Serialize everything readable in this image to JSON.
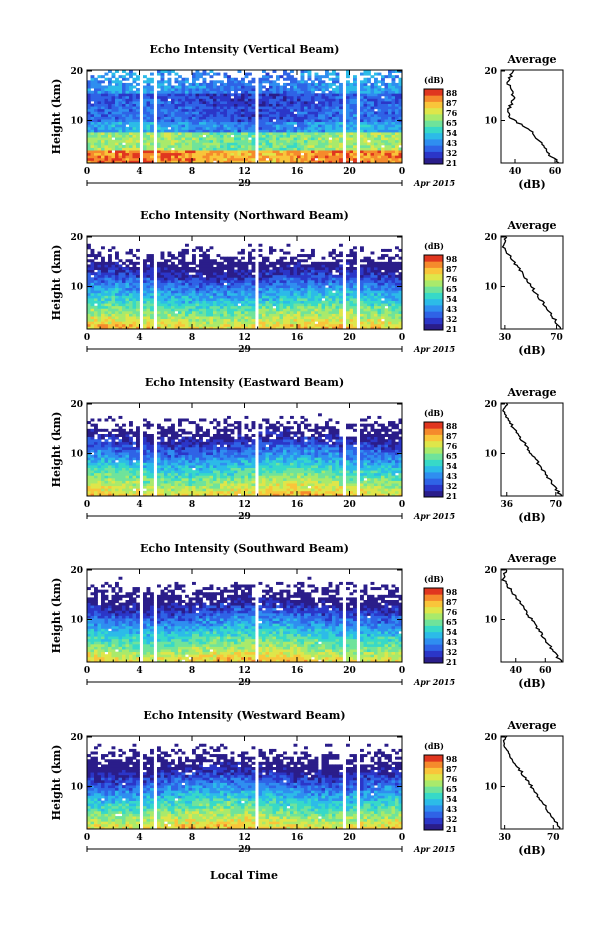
{
  "figure": {
    "xlabel": "Local Time",
    "date_label": "Apr 2015",
    "day_label": "29",
    "colorbar_unit": "(dB)",
    "colorbar_ticks": [],
    "cmap": [
      "#2a1d8a",
      "#2b36c8",
      "#2f63e6",
      "#2f8ef0",
      "#2cbbe8",
      "#37d9c8",
      "#6fe39b",
      "#a9ea6b",
      "#dfe64a",
      "#f9c53a",
      "#f58a2c",
      "#e0361f"
    ],
    "x_ticks": [
      "0",
      "4",
      "8",
      "12",
      "16",
      "20",
      "0"
    ],
    "y_ticks": [
      "20",
      "10"
    ]
  },
  "chart_data": [
    {
      "type": "heatmap",
      "title": "Echo Intensity (Vertical Beam)",
      "ylabel": "Height (km)",
      "x_range_hours": [
        0,
        24
      ],
      "y_range_km": [
        2,
        20
      ],
      "colorbar_ticks": [
        "88",
        "87",
        "76",
        "65",
        "54",
        "43",
        "32",
        "21"
      ],
      "profile": {
        "title": "Average",
        "xlabel": "(dB)",
        "x_ticks": [
          "40",
          "60"
        ],
        "xlim": [
          33,
          64
        ]
      }
    },
    {
      "type": "heatmap",
      "title": "Echo Intensity (Northward Beam)",
      "ylabel": "Height (km)",
      "x_range_hours": [
        0,
        24
      ],
      "y_range_km": [
        2,
        20
      ],
      "colorbar_ticks": [
        "98",
        "87",
        "76",
        "65",
        "54",
        "43",
        "32",
        "21"
      ],
      "profile": {
        "title": "Average",
        "xlabel": "(dB)",
        "x_ticks": [
          "30",
          "70"
        ],
        "xlim": [
          27,
          75
        ]
      }
    },
    {
      "type": "heatmap",
      "title": "Echo Intensity (Eastward Beam)",
      "ylabel": "Height (km)",
      "x_range_hours": [
        0,
        24
      ],
      "y_range_km": [
        2,
        20
      ],
      "colorbar_ticks": [
        "88",
        "87",
        "76",
        "65",
        "54",
        "43",
        "32",
        "21"
      ],
      "profile": {
        "title": "Average",
        "xlabel": "(dB)",
        "x_ticks": [
          "36",
          "70"
        ],
        "xlim": [
          32,
          75
        ]
      }
    },
    {
      "type": "heatmap",
      "title": "Echo Intensity (Southward Beam)",
      "ylabel": "Height (km)",
      "x_range_hours": [
        0,
        24
      ],
      "y_range_km": [
        2,
        20
      ],
      "colorbar_ticks": [
        "98",
        "87",
        "76",
        "65",
        "54",
        "43",
        "32",
        "21"
      ],
      "profile": {
        "title": "Average",
        "xlabel": "(dB)",
        "x_ticks": [
          "40",
          "60"
        ],
        "xlim": [
          30,
          72
        ]
      }
    },
    {
      "type": "heatmap",
      "title": "Echo Intensity (Westward Beam)",
      "ylabel": "Height (km)",
      "x_range_hours": [
        0,
        24
      ],
      "y_range_km": [
        2,
        20
      ],
      "colorbar_ticks": [
        "98",
        "87",
        "76",
        "65",
        "54",
        "43",
        "32",
        "21"
      ],
      "profile": {
        "title": "Average",
        "xlabel": "(dB)",
        "x_ticks": [
          "30",
          "70"
        ],
        "xlim": [
          27,
          78
        ]
      }
    }
  ]
}
